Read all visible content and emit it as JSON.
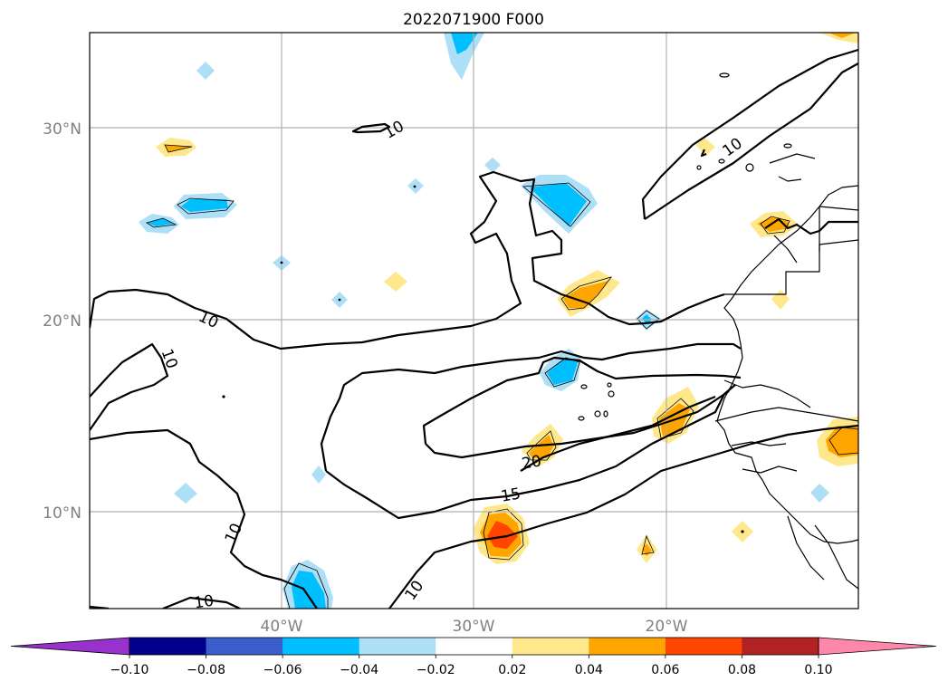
{
  "title": "2022071900 F000",
  "map": {
    "lat_labels": [
      "30°N",
      "20°N",
      "10°N"
    ],
    "lon_labels": [
      "40°W",
      "30°W",
      "20°W"
    ],
    "contour_labels": [
      "10",
      "10",
      "10",
      "10",
      "10",
      "10",
      "10",
      "15",
      "20"
    ]
  },
  "colorbar": {
    "ticks": [
      "−0.10",
      "−0.08",
      "−0.06",
      "−0.04",
      "−0.02",
      "0.02",
      "0.04",
      "0.06",
      "0.08",
      "0.10"
    ],
    "colors": [
      "#9932CC",
      "#00008B",
      "#3A5FCD",
      "#00BFFF",
      "#ADDFF7",
      "#FFFFFF",
      "#FFE88C",
      "#FFA500",
      "#FF4500",
      "#B22222",
      "#FF88AA"
    ]
  },
  "palette": {
    "light_blue": "#ADDFF7",
    "blue": "#00BFFF",
    "light_yellow": "#FFE88C",
    "orange": "#FFA500",
    "red_orange": "#FF4500"
  }
}
